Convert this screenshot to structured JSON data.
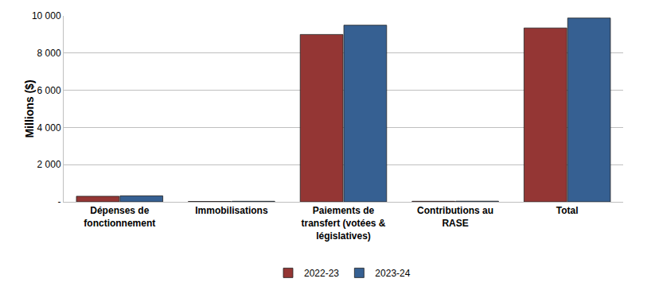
{
  "chart_data": {
    "type": "bar",
    "y_label": "Millions ($)",
    "categories": [
      "Dépenses de fonctionnement",
      "Immobilisations",
      "Paiements de transfert (votées & législatives)",
      "Contributions au RASE",
      "Total"
    ],
    "series": [
      {
        "name": "2022-23",
        "color": "#943634",
        "values": [
          300,
          20,
          9000,
          30,
          9350
        ]
      },
      {
        "name": "2023-24",
        "color": "#366092",
        "values": [
          320,
          30,
          9500,
          35,
          9885
        ]
      }
    ],
    "ylim": [
      0,
      10000
    ],
    "yticks": [
      {
        "value": 0,
        "label": "-"
      },
      {
        "value": 2000,
        "label": "2 000"
      },
      {
        "value": 4000,
        "label": "4 000"
      },
      {
        "value": 6000,
        "label": "6 000"
      },
      {
        "value": 8000,
        "label": "8 000"
      },
      {
        "value": 10000,
        "label": "10 000"
      }
    ],
    "grid": true,
    "legend": "bottom"
  }
}
